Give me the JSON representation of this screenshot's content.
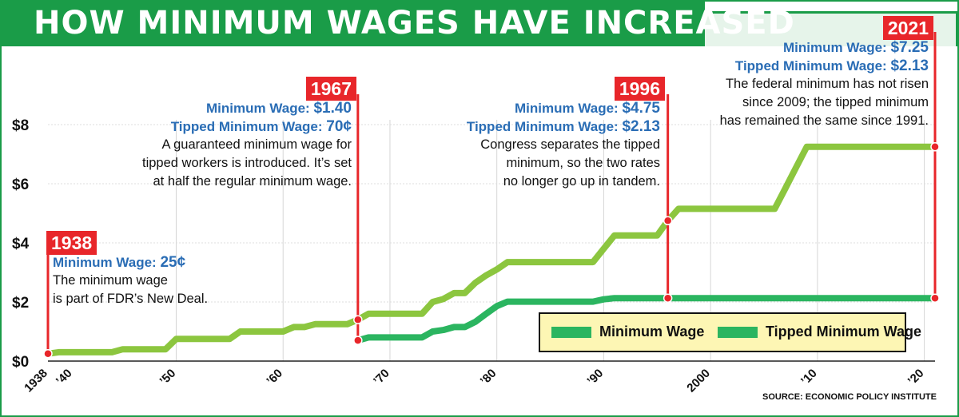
{
  "title": "HOW MINIMUM WAGES HAVE INCREASED",
  "source": "SOURCE: ECONOMIC POLICY INSTITUTE",
  "colors": {
    "minimum": "#8cc63f",
    "tipped": "#2bb560",
    "accent": "#e8262a",
    "label": "#2a6db5",
    "brand": "#1a9c48"
  },
  "legend": {
    "minimum": "Minimum Wage",
    "tipped": "Tipped Minimum Wage"
  },
  "callouts": {
    "c1938": {
      "year": "1938",
      "line1_label": "Minimum Wage:",
      "line1_value": "25¢",
      "desc1": "The minimum wage",
      "desc2": "is part of FDR’s New Deal."
    },
    "c1967": {
      "year": "1967",
      "line1_label": "Minimum Wage:",
      "line1_value": "$1.40",
      "line2_label": "Tipped Minimum Wage:",
      "line2_value": "70¢",
      "desc1": "A guaranteed minimum wage for",
      "desc2": "tipped workers is introduced. It’s set",
      "desc3": "at half the regular minimum wage."
    },
    "c1996": {
      "year": "1996",
      "line1_label": "Minimum Wage:",
      "line1_value": "$4.75",
      "line2_label": "Tipped Minimum Wage:",
      "line2_value": "$2.13",
      "desc1": "Congress separates the tipped",
      "desc2": "minimum, so the two rates",
      "desc3": "no longer go up in tandem."
    },
    "c2021": {
      "year": "2021",
      "line1_label": "Minimum Wage:",
      "line1_value": "$7.25",
      "line2_label": "Tipped Minimum Wage:",
      "line2_value": "$2.13",
      "desc1": "The federal minimum has not risen",
      "desc2": "since 2009; the tipped minimum",
      "desc3": "has remained the same since 1991."
    }
  },
  "chart_data": {
    "type": "line",
    "title": "HOW MINIMUM WAGES HAVE INCREASED",
    "xlabel": "",
    "ylabel": "",
    "xlim": [
      1938,
      2021
    ],
    "ylim": [
      0,
      8
    ],
    "yticks": [
      0,
      2,
      4,
      6,
      8
    ],
    "ytick_labels": [
      "$0",
      "$2",
      "$4",
      "$6",
      "$8"
    ],
    "xticks": [
      1938,
      1940,
      1950,
      1960,
      1970,
      1980,
      1990,
      2000,
      2010,
      2020
    ],
    "xtick_labels": [
      "1938",
      "’40",
      "’50",
      "’60",
      "’70",
      "’80",
      "’90",
      "2000",
      "’10",
      "’20"
    ],
    "series": [
      {
        "name": "Minimum Wage",
        "points": [
          [
            1938,
            0.25
          ],
          [
            1939,
            0.3
          ],
          [
            1944,
            0.3
          ],
          [
            1945,
            0.4
          ],
          [
            1949,
            0.4
          ],
          [
            1950,
            0.75
          ],
          [
            1955,
            0.75
          ],
          [
            1956,
            1.0
          ],
          [
            1960,
            1.0
          ],
          [
            1961,
            1.15
          ],
          [
            1962,
            1.15
          ],
          [
            1963,
            1.25
          ],
          [
            1966,
            1.25
          ],
          [
            1967,
            1.4
          ],
          [
            1968,
            1.6
          ],
          [
            1973,
            1.6
          ],
          [
            1974,
            2.0
          ],
          [
            1975,
            2.1
          ],
          [
            1976,
            2.3
          ],
          [
            1977,
            2.3
          ],
          [
            1978,
            2.65
          ],
          [
            1979,
            2.9
          ],
          [
            1980,
            3.1
          ],
          [
            1981,
            3.35
          ],
          [
            1989,
            3.35
          ],
          [
            1990,
            3.8
          ],
          [
            1991,
            4.25
          ],
          [
            1995,
            4.25
          ],
          [
            1996,
            4.75
          ],
          [
            1997,
            5.15
          ],
          [
            2006,
            5.15
          ],
          [
            2007,
            5.85
          ],
          [
            2008,
            6.55
          ],
          [
            2009,
            7.25
          ],
          [
            2021,
            7.25
          ]
        ]
      },
      {
        "name": "Tipped Minimum Wage",
        "points": [
          [
            1967,
            0.7
          ],
          [
            1968,
            0.8
          ],
          [
            1973,
            0.8
          ],
          [
            1974,
            1.0
          ],
          [
            1975,
            1.05
          ],
          [
            1976,
            1.15
          ],
          [
            1977,
            1.15
          ],
          [
            1978,
            1.33
          ],
          [
            1979,
            1.6
          ],
          [
            1980,
            1.86
          ],
          [
            1981,
            2.01
          ],
          [
            1989,
            2.01
          ],
          [
            1990,
            2.09
          ],
          [
            1991,
            2.13
          ],
          [
            2021,
            2.13
          ]
        ]
      }
    ],
    "markers": [
      {
        "year": 1938,
        "values": [
          0.25
        ]
      },
      {
        "year": 1967,
        "values": [
          1.4,
          0.7
        ]
      },
      {
        "year": 1996,
        "values": [
          4.75,
          2.13
        ]
      },
      {
        "year": 2021,
        "values": [
          7.25,
          2.13
        ]
      }
    ]
  }
}
